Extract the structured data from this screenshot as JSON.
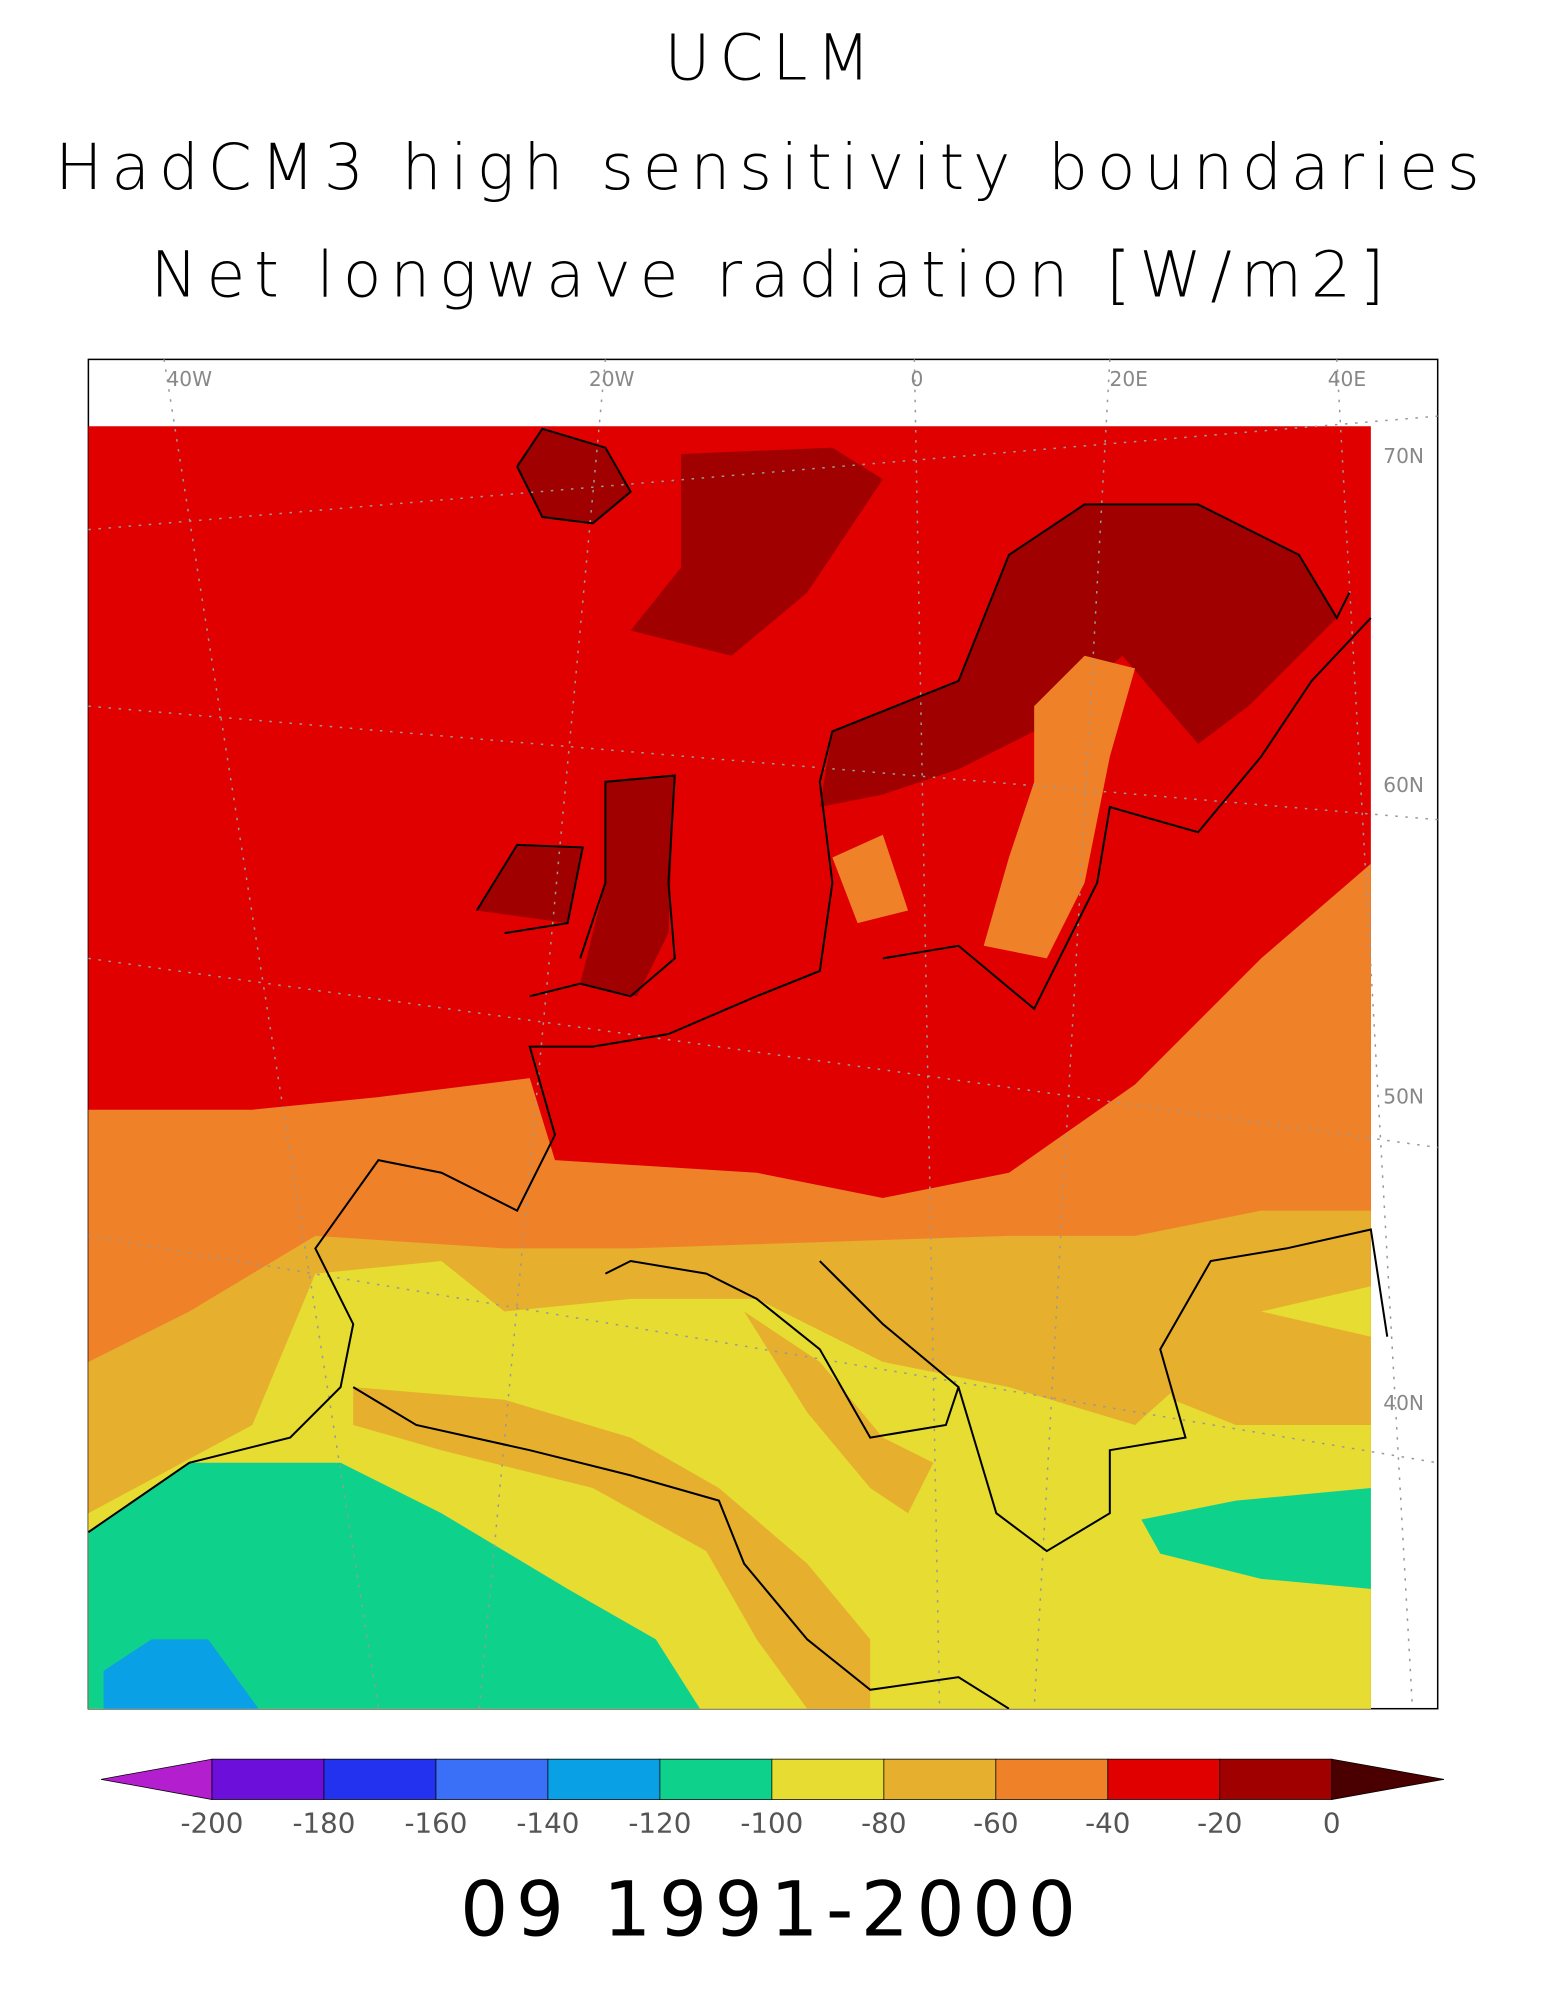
{
  "title": [
    "UCLM",
    "HadCM3 high sensitivity boundaries",
    "Net longwave radiation [W/m2]"
  ],
  "map": {
    "lon_labels": [
      "40W",
      "20W",
      "0",
      "20E",
      "40E"
    ],
    "lat_labels": [
      "70N",
      "60N",
      "50N",
      "40N"
    ]
  },
  "colorbar": {
    "ticks": [
      -200,
      -180,
      -160,
      -140,
      -120,
      -100,
      -80,
      -60,
      -40,
      -20,
      0
    ],
    "colors": [
      "#b31ecf",
      "#6d0fdb",
      "#2332ee",
      "#3a6ff8",
      "#0aa0e6",
      "#0ed28c",
      "#e6dc32",
      "#e6af2d",
      "#ef8228",
      "#e00000",
      "#a00000",
      "#4a0000"
    ]
  },
  "caption": "09 1991-2000"
}
